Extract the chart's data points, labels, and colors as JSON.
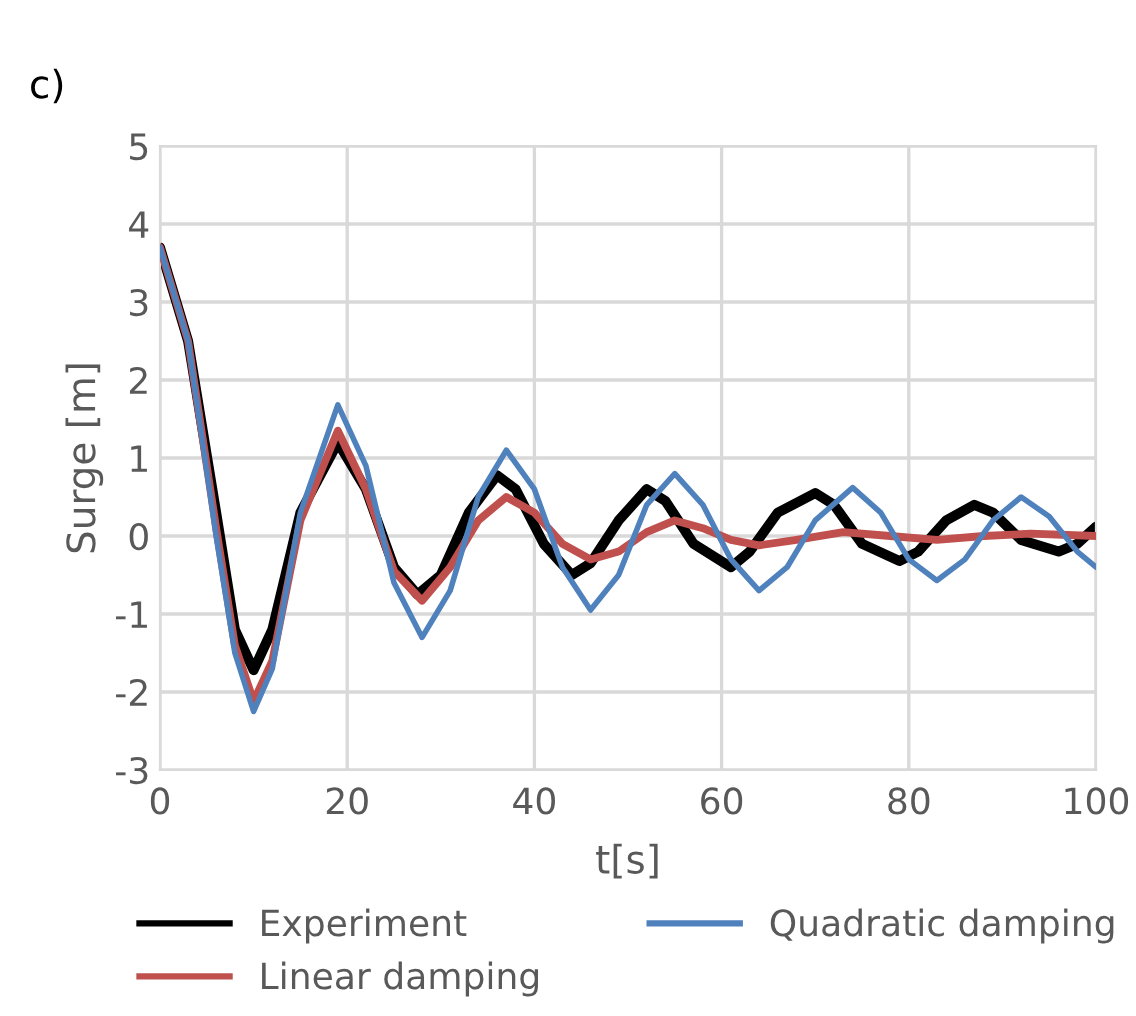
{
  "chart_data": {
    "type": "line",
    "title": "c)",
    "xlabel": "t[s]",
    "ylabel": "Surge [m]",
    "xlim": [
      0,
      100
    ],
    "xticks": [
      0,
      20,
      40,
      60,
      80,
      100
    ],
    "ylim": [
      -3,
      5
    ],
    "yticks": [
      -3,
      -2,
      -1,
      0,
      1,
      2,
      3,
      4,
      5
    ],
    "grid": true,
    "legend": "bottom",
    "marker": "none",
    "line_style": "solid",
    "series": [
      {
        "name": "Experiment",
        "color": "#000000",
        "x": [
          0,
          3,
          6,
          8,
          10,
          12,
          15,
          19,
          22,
          25,
          27.5,
          30,
          33,
          36,
          38,
          41,
          44,
          46,
          49,
          52,
          54,
          57,
          61,
          63,
          66,
          70,
          72,
          75,
          79,
          81,
          84,
          87,
          89,
          92,
          96,
          98,
          100
        ],
        "values": [
          3.7,
          2.5,
          0.3,
          -1.2,
          -1.72,
          -1.2,
          0.3,
          1.2,
          0.6,
          -0.4,
          -0.75,
          -0.5,
          0.3,
          0.78,
          0.6,
          -0.1,
          -0.5,
          -0.35,
          0.2,
          0.6,
          0.45,
          -0.1,
          -0.4,
          -0.2,
          0.3,
          0.55,
          0.4,
          -0.1,
          -0.32,
          -0.2,
          0.2,
          0.4,
          0.3,
          -0.05,
          -0.2,
          -0.1,
          0.12
        ]
      },
      {
        "name": "Linear damping",
        "color": "#c0504d",
        "x": [
          0,
          3,
          6,
          8,
          10,
          12,
          15,
          19,
          22,
          25,
          28,
          31,
          34,
          37,
          40,
          43,
          46,
          49,
          52,
          55,
          58,
          61,
          64,
          68,
          73,
          78,
          83,
          88,
          93,
          100
        ],
        "values": [
          3.7,
          2.5,
          0.1,
          -1.4,
          -2.12,
          -1.6,
          0.2,
          1.35,
          0.6,
          -0.45,
          -0.83,
          -0.4,
          0.2,
          0.5,
          0.3,
          -0.1,
          -0.3,
          -0.2,
          0.05,
          0.2,
          0.1,
          -0.05,
          -0.12,
          -0.05,
          0.05,
          0.0,
          -0.05,
          0.0,
          0.03,
          0.0
        ]
      },
      {
        "name": "Quadratic damping",
        "color": "#4f81bd",
        "x": [
          0,
          3,
          6,
          8,
          10,
          12,
          15,
          19,
          22,
          25,
          28,
          31,
          34,
          37,
          40,
          43,
          46,
          49,
          52,
          55,
          58,
          61,
          64,
          67,
          70,
          74,
          77,
          80,
          83,
          86,
          89,
          92,
          95,
          98,
          100
        ],
        "values": [
          3.7,
          2.5,
          0.0,
          -1.5,
          -2.25,
          -1.7,
          0.3,
          1.68,
          0.9,
          -0.6,
          -1.3,
          -0.7,
          0.5,
          1.1,
          0.6,
          -0.4,
          -0.95,
          -0.5,
          0.4,
          0.8,
          0.4,
          -0.3,
          -0.7,
          -0.4,
          0.2,
          0.62,
          0.3,
          -0.3,
          -0.57,
          -0.3,
          0.2,
          0.5,
          0.25,
          -0.2,
          -0.4
        ]
      }
    ]
  }
}
